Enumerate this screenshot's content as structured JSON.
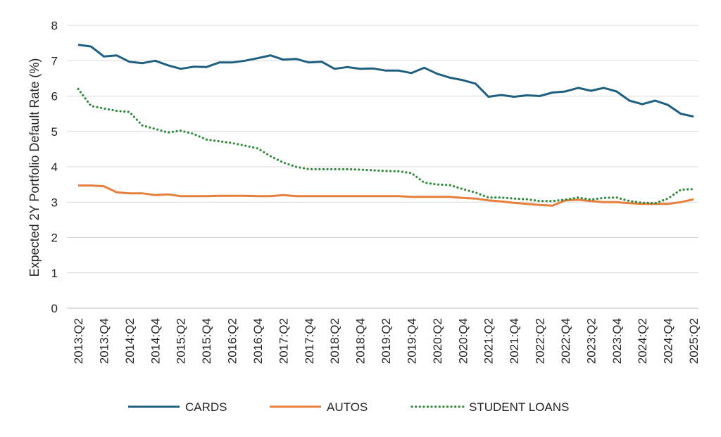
{
  "chart_data": {
    "type": "line",
    "title": "",
    "xlabel": "",
    "ylabel": "Expected 2Y Portfolio Default Rate (%)",
    "ylim": [
      0,
      8
    ],
    "yticks": [
      "0",
      "1",
      "2",
      "3",
      "4",
      "5",
      "6",
      "7",
      "8"
    ],
    "grid": true,
    "legend": "bottom",
    "categories": [
      "2013:Q2",
      "2013:Q3",
      "2013:Q4",
      "2014:Q1",
      "2014:Q2",
      "2014:Q3",
      "2014:Q4",
      "2015:Q1",
      "2015:Q2",
      "2015:Q3",
      "2015:Q4",
      "2016:Q1",
      "2016:Q2",
      "2016:Q3",
      "2016:Q4",
      "2017:Q1",
      "2017:Q2",
      "2017:Q3",
      "2017:Q4",
      "2018:Q1",
      "2018:Q2",
      "2018:Q3",
      "2018:Q4",
      "2019:Q1",
      "2019:Q2",
      "2019:Q3",
      "2019:Q4",
      "2020:Q1",
      "2020:Q2",
      "2020:Q3",
      "2020:Q4",
      "2021:Q1",
      "2021:Q2",
      "2021:Q3",
      "2021:Q4",
      "2022:Q1",
      "2022:Q2",
      "2022:Q3",
      "2022:Q4",
      "2023:Q1",
      "2023:Q2",
      "2023:Q3",
      "2023:Q4",
      "2024:Q1",
      "2024:Q2",
      "2024:Q3",
      "2024:Q4",
      "2025:Q1",
      "2025:Q2"
    ],
    "tick_labels": [
      "2013:Q2",
      "2013:Q4",
      "2014:Q2",
      "2014:Q4",
      "2015:Q2",
      "2015:Q4",
      "2016:Q2",
      "2016:Q4",
      "2017:Q2",
      "2017:Q4",
      "2018:Q2",
      "2018:Q4",
      "2019:Q2",
      "2019:Q4",
      "2020:Q2",
      "2020:Q4",
      "2021:Q2",
      "2021:Q4",
      "2022:Q2",
      "2022:Q4",
      "2023:Q2",
      "2023:Q4",
      "2024:Q2",
      "2024:Q4",
      "2025:Q2"
    ],
    "series": [
      {
        "name": "CARDS",
        "color": "#1f5f7f",
        "style": "solid",
        "values": [
          7.45,
          7.4,
          7.12,
          7.15,
          6.97,
          6.93,
          7.0,
          6.87,
          6.77,
          6.83,
          6.82,
          6.95,
          6.95,
          7.0,
          7.07,
          7.15,
          7.03,
          7.05,
          6.95,
          6.97,
          6.77,
          6.82,
          6.77,
          6.78,
          6.72,
          6.72,
          6.65,
          6.8,
          6.63,
          6.52,
          6.45,
          6.35,
          5.98,
          6.03,
          5.98,
          6.02,
          6.0,
          6.1,
          6.13,
          6.23,
          6.15,
          6.23,
          6.13,
          5.87,
          5.77,
          5.87,
          5.75,
          5.5,
          5.42
        ]
      },
      {
        "name": "AUTOS",
        "color": "#e67e3c",
        "style": "solid",
        "values": [
          3.47,
          3.47,
          3.45,
          3.28,
          3.25,
          3.25,
          3.2,
          3.22,
          3.17,
          3.17,
          3.17,
          3.18,
          3.18,
          3.18,
          3.17,
          3.17,
          3.2,
          3.17,
          3.17,
          3.17,
          3.17,
          3.17,
          3.17,
          3.17,
          3.17,
          3.17,
          3.15,
          3.15,
          3.15,
          3.15,
          3.12,
          3.1,
          3.05,
          3.02,
          2.98,
          2.95,
          2.92,
          2.9,
          3.05,
          3.07,
          3.03,
          3.0,
          3.0,
          2.97,
          2.95,
          2.95,
          2.95,
          3.0,
          3.08
        ]
      },
      {
        "name": "STUDENT LOANS",
        "color": "#2e8b3a",
        "style": "dotted",
        "values": [
          6.2,
          5.72,
          5.65,
          5.58,
          5.55,
          5.17,
          5.07,
          4.97,
          5.02,
          4.93,
          4.77,
          4.72,
          4.67,
          4.6,
          4.52,
          4.3,
          4.12,
          4.0,
          3.93,
          3.93,
          3.93,
          3.93,
          3.92,
          3.9,
          3.88,
          3.87,
          3.82,
          3.55,
          3.5,
          3.48,
          3.37,
          3.27,
          3.13,
          3.13,
          3.1,
          3.08,
          3.03,
          3.03,
          3.07,
          3.13,
          3.07,
          3.12,
          3.13,
          3.03,
          2.98,
          2.97,
          3.1,
          3.35,
          3.37
        ]
      }
    ]
  }
}
